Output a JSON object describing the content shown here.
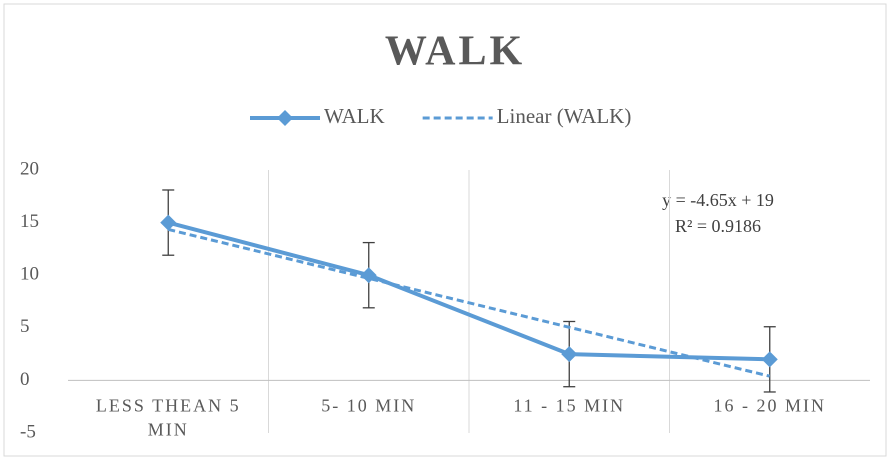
{
  "chart_data": {
    "type": "line",
    "title": "WALK",
    "categories": [
      "LESS THEAN 5 MIN",
      "5- 10 MIN",
      "11 - 15 MIN",
      "16 - 20 MIN"
    ],
    "series": [
      {
        "name": "WALK",
        "color": "#5b9bd5",
        "values": [
          15,
          10,
          2.5,
          2
        ],
        "errors": [
          3.1,
          3.1,
          3.1,
          3.1
        ]
      },
      {
        "name": "Linear (WALK)",
        "color": "#5b9bd5",
        "dashed": true,
        "values": [
          14.35,
          9.7,
          5.05,
          0.4
        ]
      }
    ],
    "annotations": [
      "y = -4.65x + 19",
      "R² = 0.9186"
    ],
    "ylim": [
      -5,
      20
    ],
    "yticks": [
      -5,
      0,
      5,
      10,
      15,
      20
    ],
    "grid": true
  }
}
